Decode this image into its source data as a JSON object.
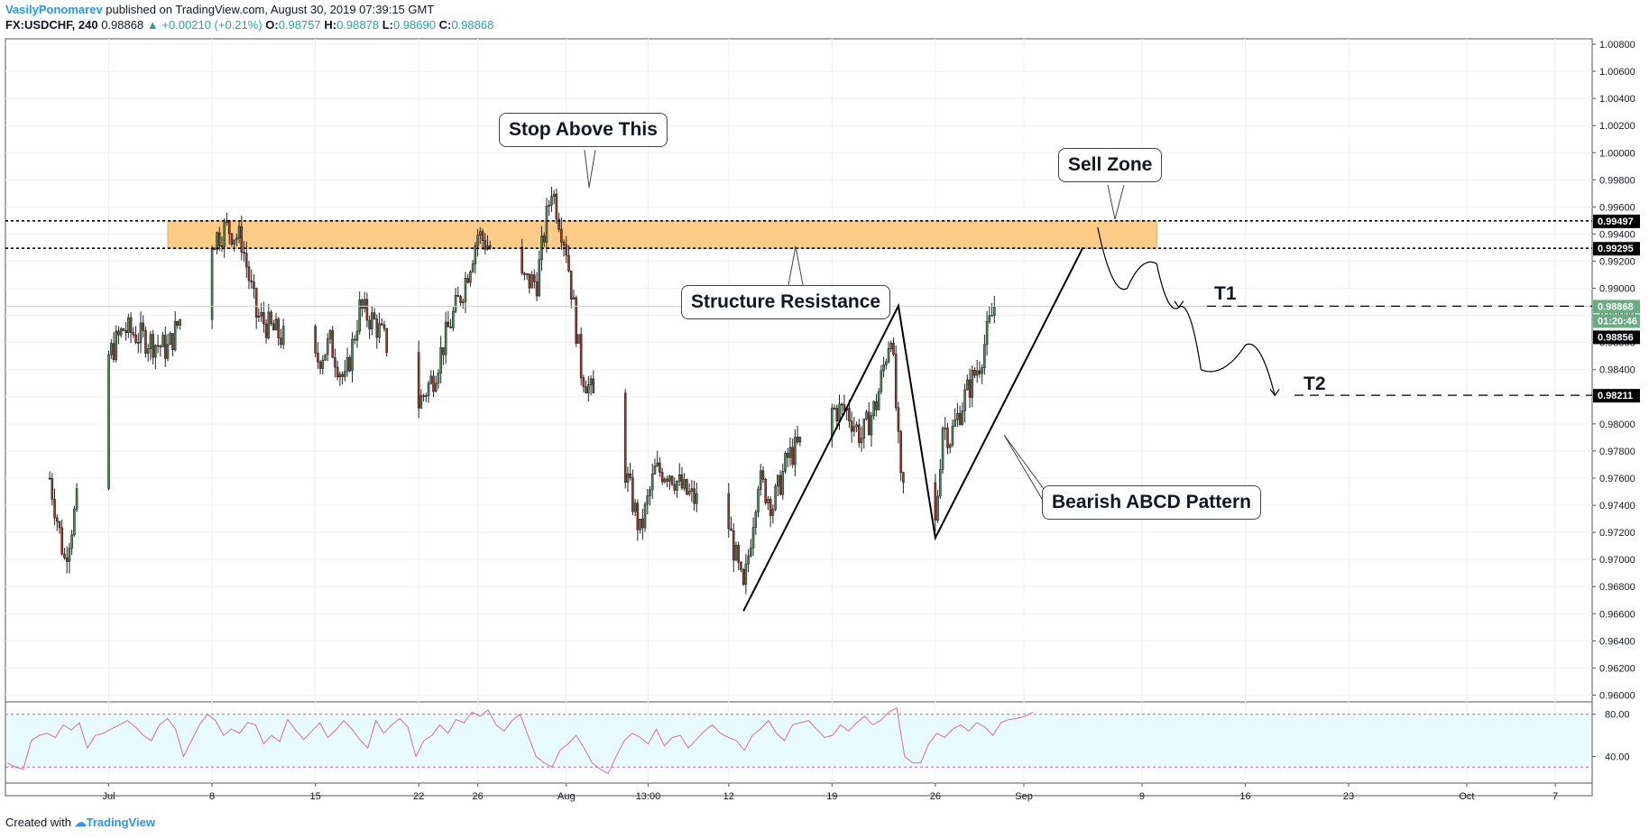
{
  "header": {
    "author": "VasilyPonomarev",
    "published": " published on TradingView.com, August 30, 2019 07:39:15 GMT",
    "symbol": "FX:USDCHF, 240",
    "last": "0.98868",
    "change": "+0.00210 (+0.21%)",
    "ohlc": [
      {
        "key": "O:",
        "value": "0.98757"
      },
      {
        "key": "H:",
        "value": "0.98878"
      },
      {
        "key": "L:",
        "value": "0.98690"
      },
      {
        "key": "C:",
        "value": "0.98868"
      }
    ]
  },
  "footer": {
    "created": "Created with",
    "brand": "TradingView"
  },
  "annotations": {
    "stop": "Stop Above This",
    "sell_zone": "Sell Zone",
    "structure": "Structure Resistance",
    "abcd": "Bearish ABCD Pattern",
    "t1": "T1",
    "t2": "T2"
  },
  "colors": {
    "up": "#4c8c5a",
    "down": "#a2362e",
    "zone": "#ffcc88",
    "rsi_line": "#d36bb0",
    "rsi_band": "#e8fbff",
    "last_price": "#6aab82",
    "accent": "#2196f3"
  },
  "chart_data": [
    {
      "type": "candlestick",
      "title": "",
      "symbol": "FX:USDCHF",
      "timeframe": "240",
      "x_ticks": [
        "Jul",
        "8",
        "15",
        "22",
        "26",
        "Aug",
        "13:00",
        "12",
        "19",
        "26",
        "Sep",
        "9",
        "16",
        "23",
        "Oct",
        "7"
      ],
      "y_ticks": [
        "0.96000",
        "0.96200",
        "0.96400",
        "0.96600",
        "0.96800",
        "0.97000",
        "0.97200",
        "0.97400",
        "0.97600",
        "0.97800",
        "0.98000",
        "0.98200",
        "0.98400",
        "0.98600",
        "0.98800",
        "0.99000",
        "0.99200",
        "0.99400",
        "0.99600",
        "0.99800",
        "1.00000",
        "1.00200",
        "1.00400",
        "1.00600",
        "1.00800"
      ],
      "ylim": [
        0.9595,
        1.0084
      ],
      "grid": true,
      "series": [
        {
          "name": "USDCHF path",
          "points": [
            [
              "Jun 27 00:00",
              0.976
            ],
            [
              "Jun 28 00:00",
              0.97
            ],
            [
              "Jul 01 00:00",
              0.985
            ],
            [
              "Jul 02 00:00",
              0.987
            ],
            [
              "Jul 03 00:00",
              0.9865
            ],
            [
              "Jul 05 00:00",
              0.9855
            ],
            [
              "Jul 08 00:00",
              0.9935
            ],
            [
              "Jul 09 00:00",
              0.9945
            ],
            [
              "Jul 10 00:00",
              0.9935
            ],
            [
              "Jul 11 00:00",
              0.988
            ],
            [
              "Jul 12 00:00",
              0.987
            ],
            [
              "Jul 15 00:00",
              0.9845
            ],
            [
              "Jul 16 00:00",
              0.986
            ],
            [
              "Jul 17 00:00",
              0.983
            ],
            [
              "Jul 18 00:00",
              0.9885
            ],
            [
              "Jul 19 00:00",
              0.9875
            ],
            [
              "Jul 22 00:00",
              0.9815
            ],
            [
              "Jul 23 00:00",
              0.9835
            ],
            [
              "Jul 24 00:00",
              0.987
            ],
            [
              "Jul 25 00:00",
              0.99
            ],
            [
              "Jul 26 00:00",
              0.994
            ],
            [
              "Jul 29 00:00",
              0.9905
            ],
            [
              "Jul 30 00:00",
              0.9905
            ],
            [
              "Jul 31 00:00",
              0.9975
            ],
            [
              "Aug 01 00:00",
              0.993
            ],
            [
              "Aug 02 00:00",
              0.984
            ],
            [
              "Aug 05 00:00",
              0.9765
            ],
            [
              "Aug 06 00:00",
              0.972
            ],
            [
              "Aug 07 00:00",
              0.9765
            ],
            [
              "Aug 08 00:00",
              0.9765
            ],
            [
              "Aug 09 00:00",
              0.975
            ],
            [
              "Aug 12 00:00",
              0.9725
            ],
            [
              "Aug 13 00:00",
              0.9675
            ],
            [
              "Aug 14 00:00",
              0.976
            ],
            [
              "Aug 15 00:00",
              0.974
            ],
            [
              "Aug 16 00:00",
              0.9775
            ],
            [
              "Aug 19 00:00",
              0.981
            ],
            [
              "Aug 20 00:00",
              0.981
            ],
            [
              "Aug 21 00:00",
              0.979
            ],
            [
              "Aug 22 00:00",
              0.9815
            ],
            [
              "Aug 23 00:00",
              0.987
            ],
            [
              "Aug 23 16:00",
              0.9755
            ],
            [
              "Aug 26 00:00",
              0.9725
            ],
            [
              "Aug 26 12:00",
              0.98
            ],
            [
              "Aug 27 00:00",
              0.979
            ],
            [
              "Aug 28 00:00",
              0.982
            ],
            [
              "Aug 29 00:00",
              0.9845
            ],
            [
              "Aug 30 00:00",
              0.9887
            ]
          ]
        }
      ],
      "price_levels": [
        {
          "label": "0.99497",
          "value": 0.99497,
          "style": "dotted"
        },
        {
          "label": "0.99295",
          "value": 0.99295,
          "style": "dotted"
        },
        {
          "label": "0.98868",
          "value": 0.98868,
          "style": "last"
        },
        {
          "label": "01:20:46",
          "style": "countdown"
        },
        {
          "label": "0.98856",
          "value": 0.98856,
          "style": "dashed"
        },
        {
          "label": "0.98211",
          "value": 0.98211,
          "style": "dashed"
        }
      ],
      "zone": {
        "x_from": "Jul 05",
        "x_to": "Sep 10",
        "y_from": 0.99295,
        "y_to": 0.99497
      },
      "abcd": [
        [
          "Aug 13 00:00",
          0.9662
        ],
        [
          "Aug 23 12:00",
          0.9887
        ],
        [
          "Aug 26 00:00",
          0.9716
        ],
        [
          "Sep 05 00:00",
          0.993
        ]
      ],
      "projection": [
        [
          "Sep 06 00:00",
          0.9945
        ],
        [
          "Sep 08 00:00",
          0.99
        ],
        [
          "Sep 10 00:00",
          0.9918
        ],
        [
          "Sep 11 12:00",
          0.9886
        ],
        [
          "Sep 13 00:00",
          0.984
        ],
        [
          "Sep 16 00:00",
          0.9858
        ],
        [
          "Sep 18 00:00",
          0.9821
        ]
      ]
    },
    {
      "type": "line",
      "title": "",
      "y_ticks": [
        "40.00",
        "80.00"
      ],
      "ylim": [
        20,
        90
      ],
      "band": [
        30,
        80
      ],
      "series": [
        {
          "name": "RSI",
          "values": [
            34,
            30,
            28,
            55,
            60,
            62,
            58,
            70,
            65,
            72,
            48,
            60,
            62,
            66,
            70,
            74,
            68,
            60,
            55,
            70,
            76,
            66,
            40,
            55,
            70,
            80,
            74,
            60,
            66,
            62,
            72,
            70,
            52,
            60,
            54,
            75,
            65,
            56,
            64,
            72,
            58,
            65,
            74,
            66,
            56,
            48,
            74,
            62,
            70,
            76,
            68,
            40,
            55,
            60,
            70,
            62,
            75,
            72,
            82,
            78,
            84,
            70,
            64,
            74,
            80,
            60,
            40,
            34,
            30,
            46,
            52,
            60,
            48,
            34,
            28,
            24,
            40,
            55,
            62,
            58,
            52,
            66,
            50,
            58,
            60,
            48,
            56,
            64,
            70,
            62,
            58,
            55,
            46,
            60,
            66,
            74,
            62,
            55,
            70,
            72,
            74,
            66,
            58,
            60,
            70,
            64,
            72,
            78,
            70,
            74,
            82,
            86,
            40,
            34,
            34,
            52,
            62,
            58,
            66,
            70,
            64,
            72,
            68,
            60,
            72,
            75,
            76,
            78,
            82
          ]
        }
      ]
    }
  ]
}
